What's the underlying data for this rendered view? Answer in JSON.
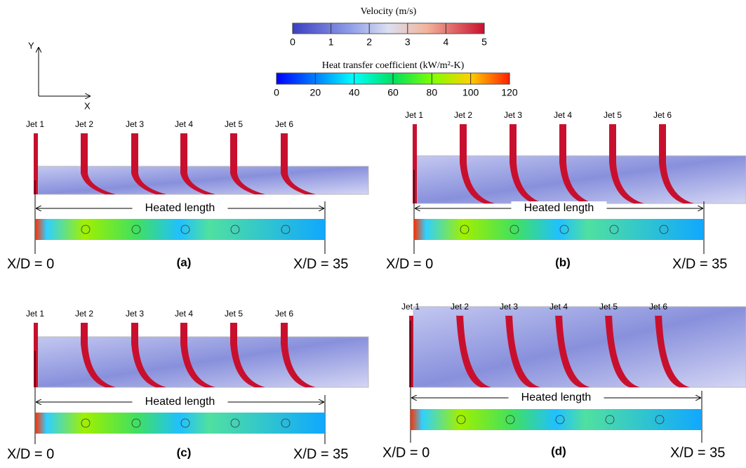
{
  "colorbars": [
    {
      "title": "Velocity (m/s)",
      "range": [
        0,
        5
      ],
      "ticks": [
        0,
        1,
        2,
        3,
        4,
        5
      ]
    },
    {
      "title": "Heat transfer coefficient (kW/m²-K)",
      "range": [
        0,
        120
      ],
      "ticks": [
        0,
        20,
        40,
        60,
        80,
        100,
        120
      ]
    }
  ],
  "axes": {
    "y": "Y",
    "x": "X"
  },
  "panels": [
    {
      "label": "(a)",
      "jets": [
        "Jet 1",
        "Jet 2",
        "Jet 3",
        "Jet 4",
        "Jet 5",
        "Jet 6"
      ],
      "heated": "Heated length",
      "start": "X/D = 0",
      "end": "X/D = 35"
    },
    {
      "label": "(b)",
      "jets": [
        "Jet 1",
        "Jet 2",
        "Jet 3",
        "Jet 4",
        "Jet 5",
        "Jet 6"
      ],
      "heated": "Heated length",
      "start": "X/D = 0",
      "end": "X/D = 35"
    },
    {
      "label": "(c)",
      "jets": [
        "Jet 1",
        "Jet 2",
        "Jet 3",
        "Jet 4",
        "Jet 5",
        "Jet 6"
      ],
      "heated": "Heated length",
      "start": "X/D = 0",
      "end": "X/D = 35"
    },
    {
      "label": "(d)",
      "jets": [
        "Jet 1",
        "Jet 2",
        "Jet 3",
        "Jet 4",
        "Jet 5",
        "Jet 6"
      ],
      "heated": "Heated length",
      "start": "X/D = 0",
      "end": "X/D = 35"
    }
  ]
}
